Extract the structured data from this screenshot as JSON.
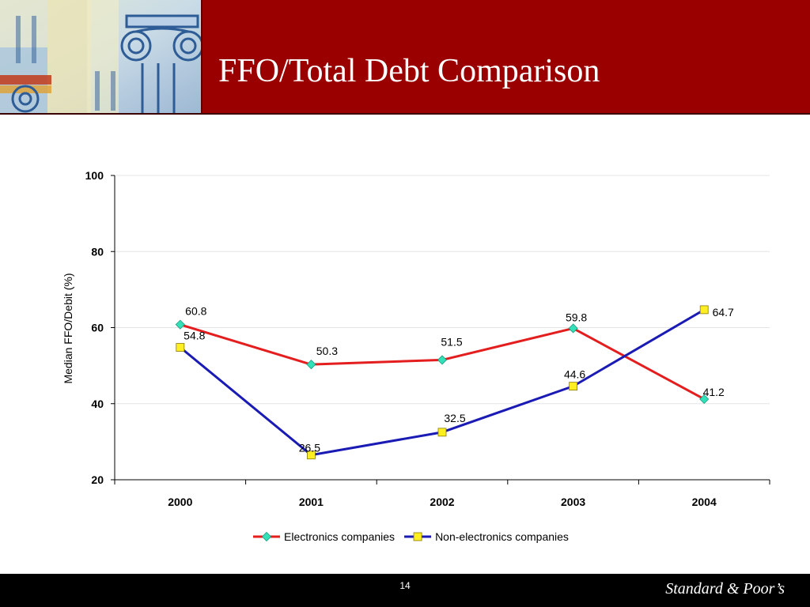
{
  "slide": {
    "title": "FFO/Total Debt Comparison",
    "page_number": "14",
    "brand": "Standard & Poor’s"
  },
  "chart_data": {
    "type": "line",
    "title": "",
    "xlabel": "",
    "ylabel": "Median FFO/Debit (%)",
    "categories": [
      "2000",
      "2001",
      "2002",
      "2003",
      "2004"
    ],
    "ylim": [
      20,
      100
    ],
    "yticks": [
      20,
      40,
      60,
      80,
      100
    ],
    "grid": true,
    "legend_position": "bottom",
    "series": [
      {
        "name": "Electronics companies",
        "values": [
          60.8,
          50.3,
          51.5,
          59.8,
          41.2
        ],
        "labels": [
          "60.8",
          "50.3",
          "51.5",
          "59.8",
          "41.2"
        ],
        "line_color": "#e41e1e",
        "marker": "diamond",
        "marker_color": "#33e0b8"
      },
      {
        "name": "Non-electronics companies",
        "values": [
          54.8,
          26.5,
          32.5,
          44.6,
          64.7
        ],
        "labels": [
          "54.8",
          "26.5",
          "32.5",
          "44.6",
          "64.7"
        ],
        "line_color": "#1a1ab4",
        "marker": "square",
        "marker_color": "#ffee22"
      }
    ]
  },
  "colors": {
    "header_bg": "#9a0000",
    "footer_bg": "#000000"
  }
}
